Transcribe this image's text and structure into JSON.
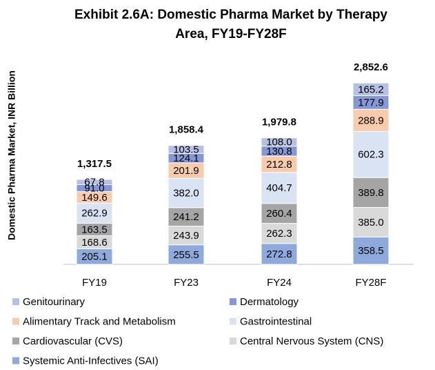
{
  "chart_data": {
    "type": "stacked_bar",
    "title": "Exhibit 2.6A: Domestic Pharma Market by Therapy Area, FY19-FY28F",
    "y_label": "Domestic Pharma Market, INR Billion",
    "categories": [
      "FY19",
      "FY23",
      "FY24",
      "FY28F"
    ],
    "series": [
      {
        "name": "Systemic Anti-Infectives (SAI)",
        "color": "#8eaadc",
        "values": [
          205.1,
          255.5,
          272.8,
          358.5
        ],
        "value_labels": [
          "205.1",
          "255.5",
          "272.8",
          "358.5"
        ]
      },
      {
        "name": "Central Nervous System (CNS)",
        "color": "#d9d9d9",
        "values": [
          168.6,
          243.9,
          262.3,
          385.0
        ],
        "value_labels": [
          "168.6",
          "243.9",
          "262.3",
          "385.0"
        ]
      },
      {
        "name": "Cardiovascular (CVS)",
        "color": "#a5a5a5",
        "values": [
          163.5,
          241.2,
          260.4,
          389.8
        ],
        "value_labels": [
          "163.5",
          "241.2",
          "260.4",
          "389.8"
        ]
      },
      {
        "name": "Gastrointestinal",
        "color": "#dae3f3",
        "values": [
          262.9,
          382.0,
          404.7,
          602.3
        ],
        "value_labels": [
          "262.9",
          "382.0",
          "404.7",
          "602.3"
        ]
      },
      {
        "name": "Alimentary Track and Metabolism",
        "color": "#f8cbad",
        "values": [
          149.6,
          201.9,
          212.8,
          288.9
        ],
        "value_labels": [
          "149.6",
          "201.9",
          "212.8",
          "288.9"
        ]
      },
      {
        "name": "Dermatology",
        "color": "#8497d6",
        "values": [
          91.0,
          124.1,
          130.8,
          177.9
        ],
        "value_labels": [
          "91.0",
          "124.1",
          "130.8",
          "177.9"
        ]
      },
      {
        "name": "Genitourinary",
        "color": "#b4c0e4",
        "values": [
          67.8,
          103.5,
          108.0,
          165.2
        ],
        "value_labels": [
          "67.8",
          "103.5",
          "108.0",
          "165.2"
        ]
      }
    ],
    "totals": {
      "values": [
        1317.5,
        1858.4,
        1979.8,
        2852.6
      ],
      "value_labels": [
        "1,317.5",
        "1,858.4",
        "1,979.8",
        "2,852.6"
      ]
    }
  }
}
